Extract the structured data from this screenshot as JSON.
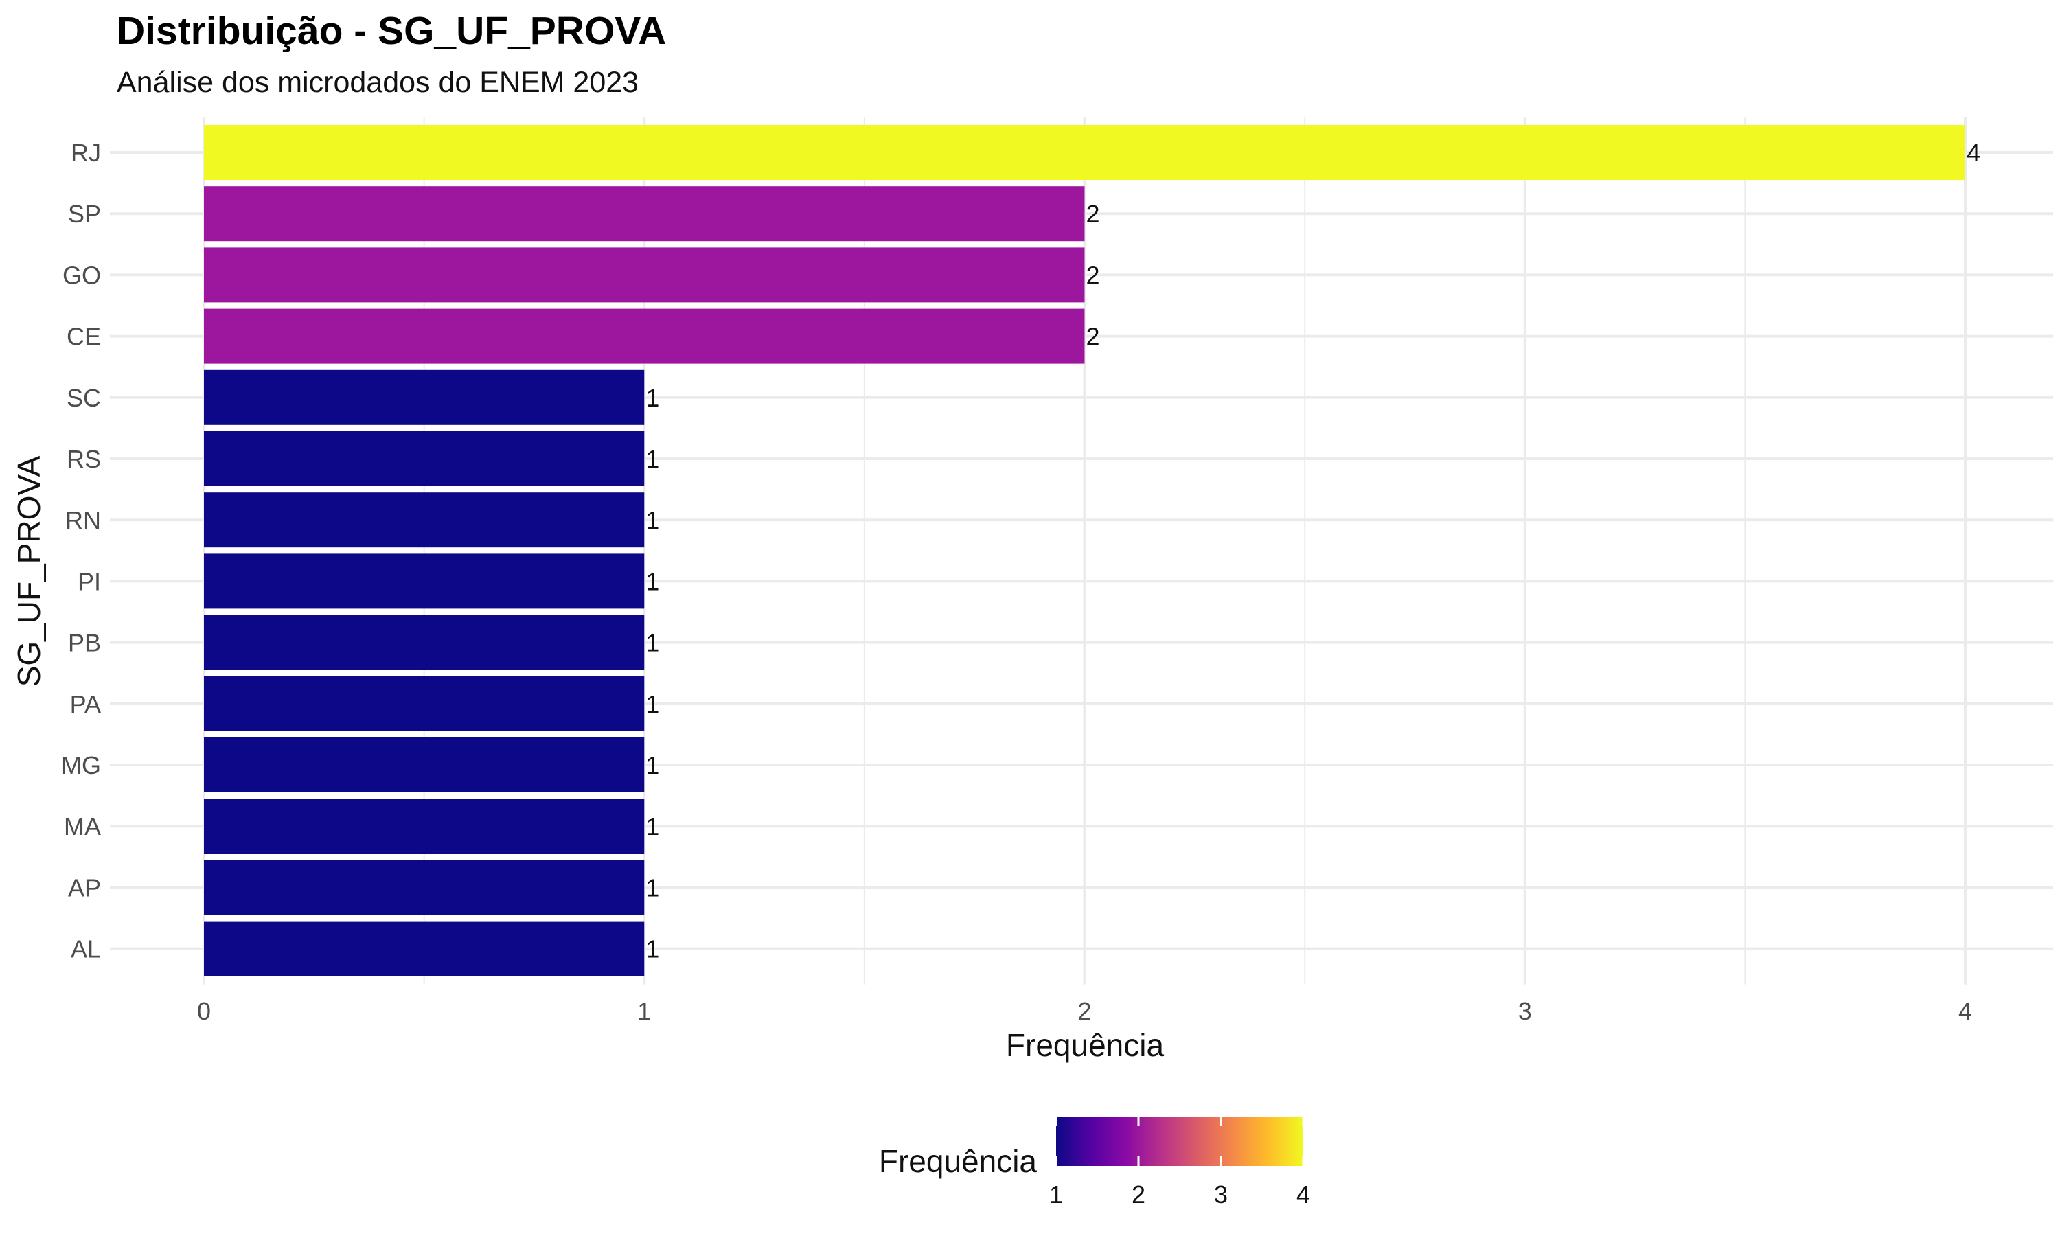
{
  "chart_data": {
    "type": "bar",
    "orientation": "horizontal",
    "title": "Distribuição - SG_UF_PROVA",
    "subtitle": "Análise dos microdados do ENEM 2023",
    "xlabel": "Frequência",
    "ylabel": "SG_UF_PROVA",
    "categories": [
      "RJ",
      "SP",
      "GO",
      "CE",
      "SC",
      "RS",
      "RN",
      "PI",
      "PB",
      "PA",
      "MG",
      "MA",
      "AP",
      "AL"
    ],
    "values": [
      4,
      2,
      2,
      2,
      1,
      1,
      1,
      1,
      1,
      1,
      1,
      1,
      1,
      1
    ],
    "data_labels": [
      "4",
      "2",
      "2",
      "2",
      "1",
      "1",
      "1",
      "1",
      "1",
      "1",
      "1",
      "1",
      "1",
      "1"
    ],
    "xlim": [
      0,
      4
    ],
    "x_ticks": [
      "0",
      "1",
      "2",
      "3",
      "4"
    ],
    "grid": true,
    "legend": {
      "title": "Frequência",
      "position": "bottom",
      "type": "colorbar",
      "range": [
        1,
        4
      ],
      "ticks": [
        "1",
        "2",
        "3",
        "4"
      ]
    },
    "colors": {
      "value_1": "#0D0887",
      "value_2": "#9C179E",
      "value_4": "#F0F921",
      "gradient": [
        "#0D0887",
        "#5402A3",
        "#8B0AA5",
        "#B93289",
        "#DB5C68",
        "#F48849",
        "#FEBC2A",
        "#F0F921"
      ],
      "grid": "#EBEBEB",
      "background": "#FFFFFF"
    }
  }
}
